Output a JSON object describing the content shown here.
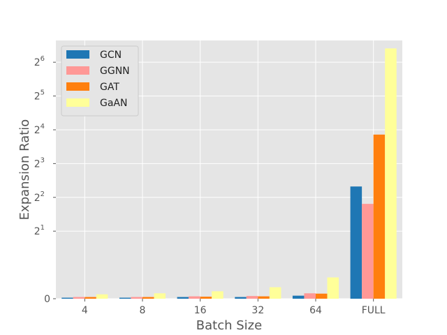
{
  "chart_data": {
    "type": "bar",
    "xlabel": "Batch Size",
    "ylabel": "Expansion Ratio",
    "yscale": "symlog-base-2",
    "ylim": [
      0,
      100
    ],
    "grid": true,
    "legend_position": "top-left",
    "categories": [
      "4",
      "8",
      "16",
      "32",
      "64",
      "FULL"
    ],
    "y_ticks": [
      {
        "value": 0,
        "base": "0",
        "exp": ""
      },
      {
        "value": 2,
        "base": "2",
        "exp": "1"
      },
      {
        "value": 4,
        "base": "2",
        "exp": "2"
      },
      {
        "value": 8,
        "base": "2",
        "exp": "3"
      },
      {
        "value": 16,
        "base": "2",
        "exp": "4"
      },
      {
        "value": 32,
        "base": "2",
        "exp": "5"
      },
      {
        "value": 64,
        "base": "2",
        "exp": "6"
      }
    ],
    "series": [
      {
        "name": "GCN",
        "color": "#1f77b4",
        "values": [
          0.03,
          0.03,
          0.05,
          0.05,
          0.09,
          5.0
        ]
      },
      {
        "name": "GGNN",
        "color": "#ff9896",
        "values": [
          0.05,
          0.05,
          0.07,
          0.08,
          0.16,
          3.5
        ]
      },
      {
        "name": "GAT",
        "color": "#ff7f0e",
        "values": [
          0.05,
          0.05,
          0.06,
          0.07,
          0.15,
          14.5
        ]
      },
      {
        "name": "GaAN",
        "color": "#ffff99",
        "values": [
          0.13,
          0.16,
          0.22,
          0.34,
          0.63,
          85.0
        ]
      }
    ]
  }
}
